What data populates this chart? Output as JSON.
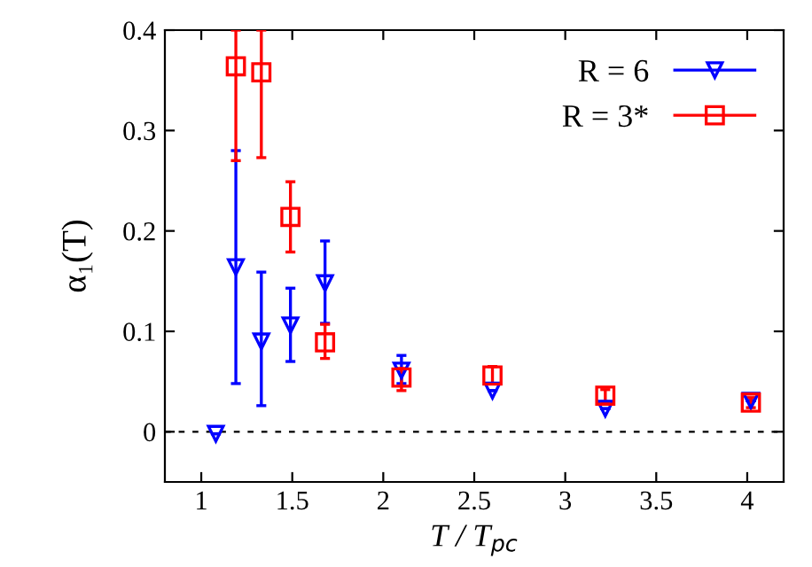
{
  "chart_data": {
    "type": "scatter",
    "xlabel": "T / T$_{pc}$",
    "ylabel": "α₁(T)",
    "xlim": [
      0.8,
      4.2
    ],
    "ylim": [
      -0.05,
      0.4
    ],
    "xticks": [
      1,
      1.5,
      2,
      2.5,
      3,
      3.5,
      4
    ],
    "yticks": [
      0,
      0.1,
      0.2,
      0.3,
      0.4
    ],
    "legend": "top right",
    "grid": false,
    "ref_lines": [
      {
        "axis": "y",
        "value": 0,
        "color": "#000000",
        "line_style": "dashed"
      }
    ],
    "series": [
      {
        "name": "R = 6",
        "color": "#0000ff",
        "marker": "triangle",
        "x": [
          1.08,
          1.19,
          1.33,
          1.49,
          1.68,
          2.1,
          2.6,
          3.22,
          4.02
        ],
        "values": [
          -0.002,
          0.164,
          0.09,
          0.106,
          0.148,
          0.061,
          0.041,
          0.023,
          0.031
        ],
        "errors": [
          null,
          [
            0.048,
            0.28
          ],
          [
            0.026,
            0.159
          ],
          [
            0.07,
            0.143
          ],
          [
            0.108,
            0.19
          ],
          [
            0.048,
            0.076
          ],
          null,
          null,
          null
        ]
      },
      {
        "name": "R = 3*",
        "color": "#ff0000",
        "marker": "square",
        "x": [
          1.19,
          1.33,
          1.49,
          1.68,
          2.1,
          2.6,
          3.22,
          4.02
        ],
        "values": [
          0.364,
          0.358,
          0.214,
          0.089,
          0.054,
          0.056,
          0.036,
          0.029
        ],
        "errors": [
          [
            0.27,
            0.4
          ],
          [
            0.273,
            0.4
          ],
          [
            0.179,
            0.249
          ],
          [
            0.073,
            0.107
          ],
          [
            0.041,
            0.063
          ],
          [
            0.048,
            0.065
          ],
          [
            0.03,
            0.042
          ],
          [
            0.024,
            0.034
          ]
        ]
      }
    ]
  }
}
